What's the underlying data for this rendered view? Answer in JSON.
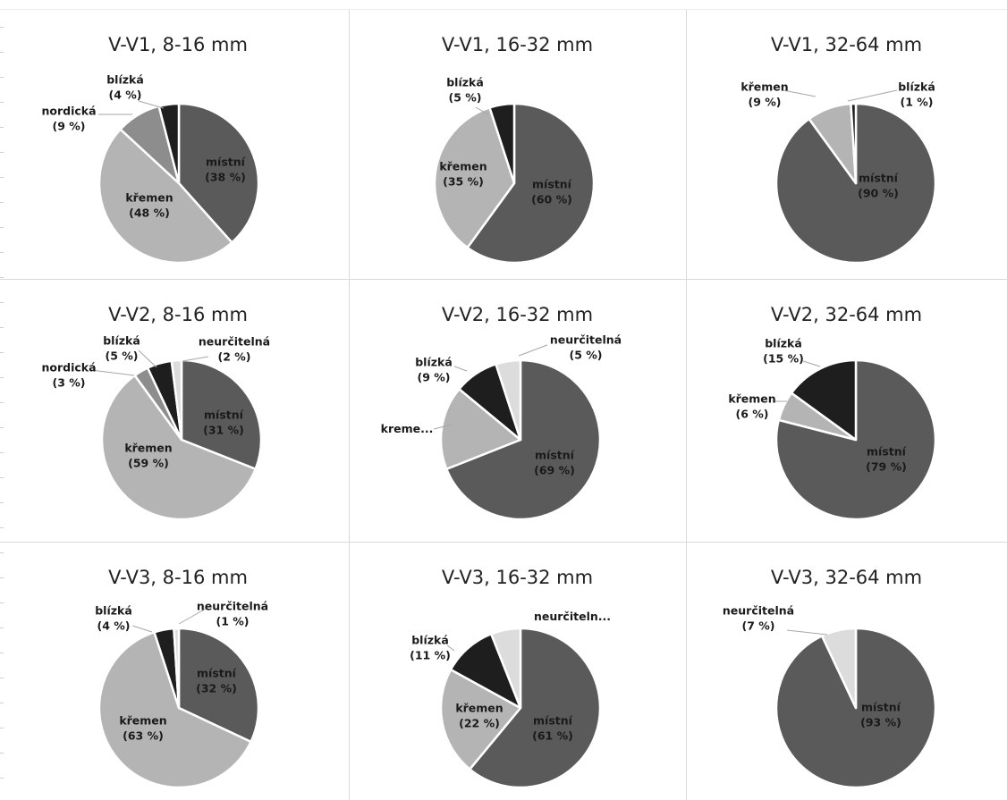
{
  "colors": {
    "místní": "#5a5a5a",
    "křemen": "#b4b4b4",
    "nordická": "#8d8d8d",
    "blízká": "#1e1e1e",
    "neurčitelná": "#dcdcdc",
    "separator": "#ffffff",
    "leader": "#a6a6a6"
  },
  "chart_data": [
    {
      "type": "pie",
      "title": "V-V1, 8-16 mm",
      "slices": [
        {
          "name": "místní",
          "value": 38,
          "label": [
            "místní",
            "(38 %)"
          ]
        },
        {
          "name": "křemen",
          "value": 48,
          "label": [
            "křemen",
            "(48 %)"
          ]
        },
        {
          "name": "nordická",
          "value": 9,
          "label": [
            "nordická",
            "(9 %)"
          ]
        },
        {
          "name": "blízká",
          "value": 4,
          "label": [
            "blízká",
            "(4 %)"
          ]
        }
      ]
    },
    {
      "type": "pie",
      "title": "V-V1, 16-32 mm",
      "slices": [
        {
          "name": "místní",
          "value": 60,
          "label": [
            "místní",
            "(60 %)"
          ]
        },
        {
          "name": "křemen",
          "value": 35,
          "label": [
            "křemen",
            "(35 %)"
          ]
        },
        {
          "name": "blízká",
          "value": 5,
          "label": [
            "blízká",
            "(5 %)"
          ]
        }
      ]
    },
    {
      "type": "pie",
      "title": "V-V1, 32-64 mm",
      "slices": [
        {
          "name": "místní",
          "value": 90,
          "label": [
            "místní",
            "(90 %)"
          ]
        },
        {
          "name": "křemen",
          "value": 9,
          "label": [
            "křemen",
            "(9 %)"
          ]
        },
        {
          "name": "blízká",
          "value": 1,
          "label": [
            "blízká",
            "(1 %)"
          ]
        }
      ]
    },
    {
      "type": "pie",
      "title": "V-V2, 8-16 mm",
      "slices": [
        {
          "name": "místní",
          "value": 31,
          "label": [
            "místní",
            "(31 %)"
          ]
        },
        {
          "name": "křemen",
          "value": 59,
          "label": [
            "křemen",
            "(59 %)"
          ]
        },
        {
          "name": "nordická",
          "value": 3,
          "label": [
            "nordická",
            "(3 %)"
          ]
        },
        {
          "name": "blízká",
          "value": 5,
          "label": [
            "blízká",
            "(5 %)"
          ]
        },
        {
          "name": "neurčitelná",
          "value": 2,
          "label": [
            "neurčitelná",
            "(2 %)"
          ]
        }
      ]
    },
    {
      "type": "pie",
      "title": "V-V2, 16-32 mm",
      "slices": [
        {
          "name": "místní",
          "value": 69,
          "label": [
            "místní",
            "(69 %)"
          ]
        },
        {
          "name": "křemen",
          "value": 17,
          "label": [
            "kreme..."
          ]
        },
        {
          "name": "blízká",
          "value": 9,
          "label": [
            "blízká",
            "(9 %)"
          ]
        },
        {
          "name": "neurčitelná",
          "value": 5,
          "label": [
            "neurčitelná",
            "(5 %)"
          ]
        }
      ]
    },
    {
      "type": "pie",
      "title": "V-V2, 32-64 mm",
      "slices": [
        {
          "name": "místní",
          "value": 79,
          "label": [
            "místní",
            "(79 %)"
          ]
        },
        {
          "name": "křemen",
          "value": 6,
          "label": [
            "křemen",
            "(6 %)"
          ]
        },
        {
          "name": "blízká",
          "value": 15,
          "label": [
            "blízká",
            "(15 %)"
          ]
        }
      ]
    },
    {
      "type": "pie",
      "title": "V-V3, 8-16 mm",
      "slices": [
        {
          "name": "místní",
          "value": 32,
          "label": [
            "místní",
            "(32 %)"
          ]
        },
        {
          "name": "křemen",
          "value": 63,
          "label": [
            "křemen",
            "(63 %)"
          ]
        },
        {
          "name": "blízká",
          "value": 4,
          "label": [
            "blízká",
            "(4 %)"
          ]
        },
        {
          "name": "neurčitelná",
          "value": 1,
          "label": [
            "neurčitelná",
            "(1 %)"
          ]
        }
      ]
    },
    {
      "type": "pie",
      "title": "V-V3, 16-32 mm",
      "slices": [
        {
          "name": "místní",
          "value": 61,
          "label": [
            "místní",
            "(61 %)"
          ]
        },
        {
          "name": "křemen",
          "value": 22,
          "label": [
            "křemen",
            "(22 %)"
          ]
        },
        {
          "name": "blízká",
          "value": 11,
          "label": [
            "blízká",
            "(11 %)"
          ]
        },
        {
          "name": "neurčitelná",
          "value": 6,
          "label": [
            "neurčiteln..."
          ]
        }
      ]
    },
    {
      "type": "pie",
      "title": "V-V3, 32-64 mm",
      "slices": [
        {
          "name": "místní",
          "value": 93,
          "label": [
            "místní",
            "(93 %)"
          ]
        },
        {
          "name": "neurčitelná",
          "value": 7,
          "label": [
            "neurčitelná",
            "(7 %)"
          ]
        }
      ]
    }
  ]
}
